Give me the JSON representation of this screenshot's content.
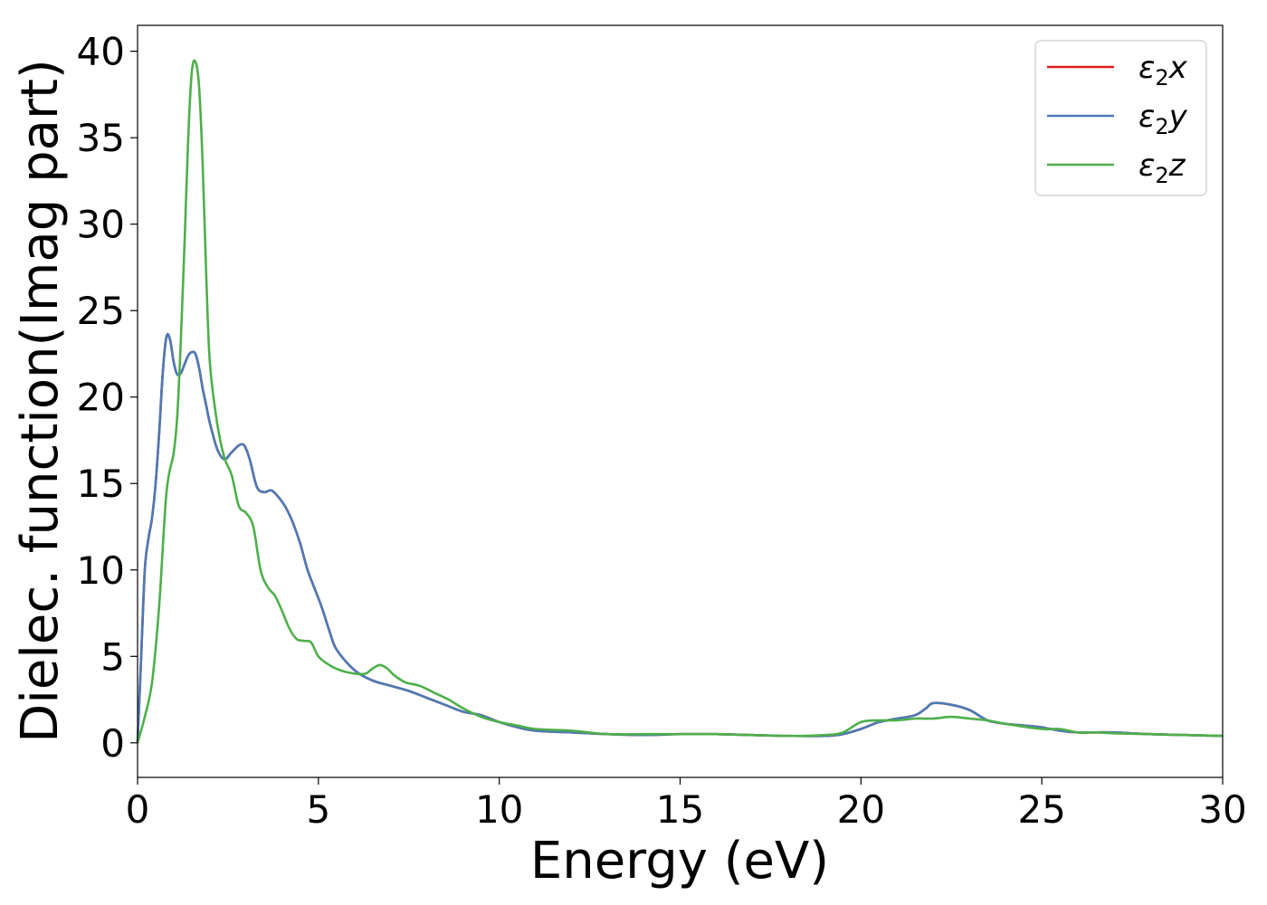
{
  "chart_data": {
    "type": "line",
    "title": "",
    "xlabel": "Energy (eV)",
    "ylabel": "Dielec. function(Imag part)",
    "xlim": [
      0,
      30
    ],
    "ylim": [
      -2,
      41.5
    ],
    "xticks": [
      0,
      5,
      10,
      15,
      20,
      25,
      30
    ],
    "yticks": [
      0,
      5,
      10,
      15,
      20,
      25,
      30,
      35,
      40
    ],
    "grid": false,
    "legend_position": "top-right",
    "series": [
      {
        "name": "ε₂x",
        "legend_base": "ε",
        "legend_sub": "2",
        "legend_suffix": "x",
        "color": "#e41a1c",
        "x": [
          0,
          0.1,
          0.2,
          0.3,
          0.4,
          0.5,
          0.6,
          0.7,
          0.8,
          0.9,
          1.0,
          1.1,
          1.2,
          1.3,
          1.4,
          1.5,
          1.6,
          1.7,
          1.8,
          1.9,
          2.0,
          2.2,
          2.4,
          2.6,
          2.8,
          2.95,
          3.1,
          3.3,
          3.5,
          3.7,
          3.9,
          4.1,
          4.3,
          4.5,
          4.7,
          4.9,
          5.1,
          5.3,
          5.5,
          6.0,
          6.5,
          7.0,
          7.5,
          8.0,
          8.5,
          9.0,
          9.5,
          10.0,
          10.5,
          11.0,
          12.0,
          13.0,
          14.0,
          15.0,
          16.0,
          17.0,
          18.0,
          19.0,
          19.5,
          20.0,
          20.5,
          21.0,
          21.5,
          21.8,
          22.0,
          22.5,
          23.0,
          23.5,
          24.0,
          24.5,
          25.0,
          25.5,
          26.0,
          26.5,
          27.0,
          28.0,
          29.0,
          30.0
        ],
        "y": [
          0,
          5,
          10,
          11.8,
          13.0,
          15.0,
          18.0,
          21.5,
          23.5,
          23.3,
          22.0,
          21.3,
          21.4,
          21.9,
          22.4,
          22.6,
          22.5,
          21.7,
          20.5,
          19.5,
          18.5,
          17.0,
          16.4,
          16.8,
          17.2,
          17.2,
          16.4,
          14.8,
          14.5,
          14.6,
          14.2,
          13.6,
          12.7,
          11.5,
          10.0,
          8.9,
          7.8,
          6.5,
          5.4,
          4.2,
          3.6,
          3.3,
          3.0,
          2.6,
          2.2,
          1.8,
          1.6,
          1.2,
          0.9,
          0.7,
          0.6,
          0.5,
          0.45,
          0.5,
          0.5,
          0.45,
          0.4,
          0.4,
          0.5,
          0.8,
          1.2,
          1.4,
          1.6,
          2.0,
          2.3,
          2.2,
          1.9,
          1.3,
          1.1,
          1.0,
          0.9,
          0.7,
          0.6,
          0.6,
          0.6,
          0.5,
          0.45,
          0.4
        ]
      },
      {
        "name": "ε₂y",
        "legend_base": "ε",
        "legend_sub": "2",
        "legend_suffix": "y",
        "color": "#4a7ab5",
        "x": [
          0,
          0.1,
          0.2,
          0.3,
          0.4,
          0.5,
          0.6,
          0.7,
          0.8,
          0.9,
          1.0,
          1.1,
          1.2,
          1.3,
          1.4,
          1.5,
          1.6,
          1.7,
          1.8,
          1.9,
          2.0,
          2.2,
          2.4,
          2.6,
          2.8,
          2.95,
          3.1,
          3.3,
          3.5,
          3.7,
          3.9,
          4.1,
          4.3,
          4.5,
          4.7,
          4.9,
          5.1,
          5.3,
          5.5,
          6.0,
          6.5,
          7.0,
          7.5,
          8.0,
          8.5,
          9.0,
          9.5,
          10.0,
          10.5,
          11.0,
          12.0,
          13.0,
          14.0,
          15.0,
          16.0,
          17.0,
          18.0,
          19.0,
          19.5,
          20.0,
          20.5,
          21.0,
          21.5,
          21.8,
          22.0,
          22.5,
          23.0,
          23.5,
          24.0,
          24.5,
          25.0,
          25.5,
          26.0,
          26.5,
          27.0,
          28.0,
          29.0,
          30.0
        ],
        "y": [
          0,
          5,
          10,
          11.8,
          13.0,
          15.0,
          18.0,
          21.5,
          23.5,
          23.3,
          22.0,
          21.3,
          21.4,
          21.9,
          22.4,
          22.6,
          22.5,
          21.7,
          20.5,
          19.5,
          18.5,
          17.0,
          16.4,
          16.8,
          17.2,
          17.2,
          16.4,
          14.8,
          14.5,
          14.6,
          14.2,
          13.6,
          12.7,
          11.5,
          10.0,
          8.9,
          7.8,
          6.5,
          5.4,
          4.2,
          3.6,
          3.3,
          3.0,
          2.6,
          2.2,
          1.8,
          1.6,
          1.2,
          0.9,
          0.7,
          0.6,
          0.5,
          0.45,
          0.5,
          0.5,
          0.45,
          0.4,
          0.4,
          0.5,
          0.8,
          1.2,
          1.4,
          1.6,
          2.0,
          2.3,
          2.2,
          1.9,
          1.3,
          1.1,
          1.0,
          0.9,
          0.7,
          0.6,
          0.6,
          0.6,
          0.5,
          0.45,
          0.4
        ]
      },
      {
        "name": "ε₂z",
        "legend_base": "ε",
        "legend_sub": "2",
        "legend_suffix": "z",
        "color": "#4daf4a",
        "x": [
          0,
          0.2,
          0.4,
          0.6,
          0.8,
          1.0,
          1.1,
          1.2,
          1.3,
          1.4,
          1.5,
          1.6,
          1.7,
          1.8,
          1.9,
          2.0,
          2.2,
          2.4,
          2.6,
          2.8,
          3.0,
          3.2,
          3.4,
          3.6,
          3.8,
          4.0,
          4.2,
          4.4,
          4.6,
          4.8,
          5.0,
          5.3,
          5.6,
          6.0,
          6.3,
          6.5,
          6.7,
          6.9,
          7.1,
          7.4,
          7.8,
          8.2,
          8.6,
          9.0,
          9.5,
          10.0,
          10.5,
          11.0,
          12.0,
          13.0,
          14.0,
          15.0,
          16.0,
          17.0,
          18.0,
          19.0,
          19.5,
          20.0,
          20.5,
          21.0,
          21.5,
          22.0,
          22.5,
          23.0,
          23.5,
          24.0,
          25.0,
          25.5,
          26.0,
          26.5,
          27.0,
          28.0,
          29.0,
          30.0
        ],
        "y": [
          0,
          1.5,
          3.5,
          8.0,
          14.5,
          16.8,
          19.0,
          23.5,
          29.0,
          35.0,
          38.8,
          39.4,
          38.0,
          33.5,
          27.0,
          22.0,
          18.5,
          16.5,
          15.5,
          13.7,
          13.3,
          12.5,
          10.0,
          9.0,
          8.5,
          7.6,
          6.6,
          6.0,
          5.9,
          5.8,
          5.0,
          4.5,
          4.2,
          4.0,
          4.0,
          4.3,
          4.5,
          4.3,
          3.9,
          3.5,
          3.3,
          2.9,
          2.5,
          2.0,
          1.5,
          1.2,
          1.0,
          0.8,
          0.7,
          0.5,
          0.5,
          0.5,
          0.5,
          0.45,
          0.4,
          0.45,
          0.6,
          1.2,
          1.3,
          1.3,
          1.4,
          1.4,
          1.5,
          1.4,
          1.3,
          1.1,
          0.8,
          0.8,
          0.6,
          0.6,
          0.55,
          0.5,
          0.45,
          0.4
        ]
      }
    ]
  }
}
